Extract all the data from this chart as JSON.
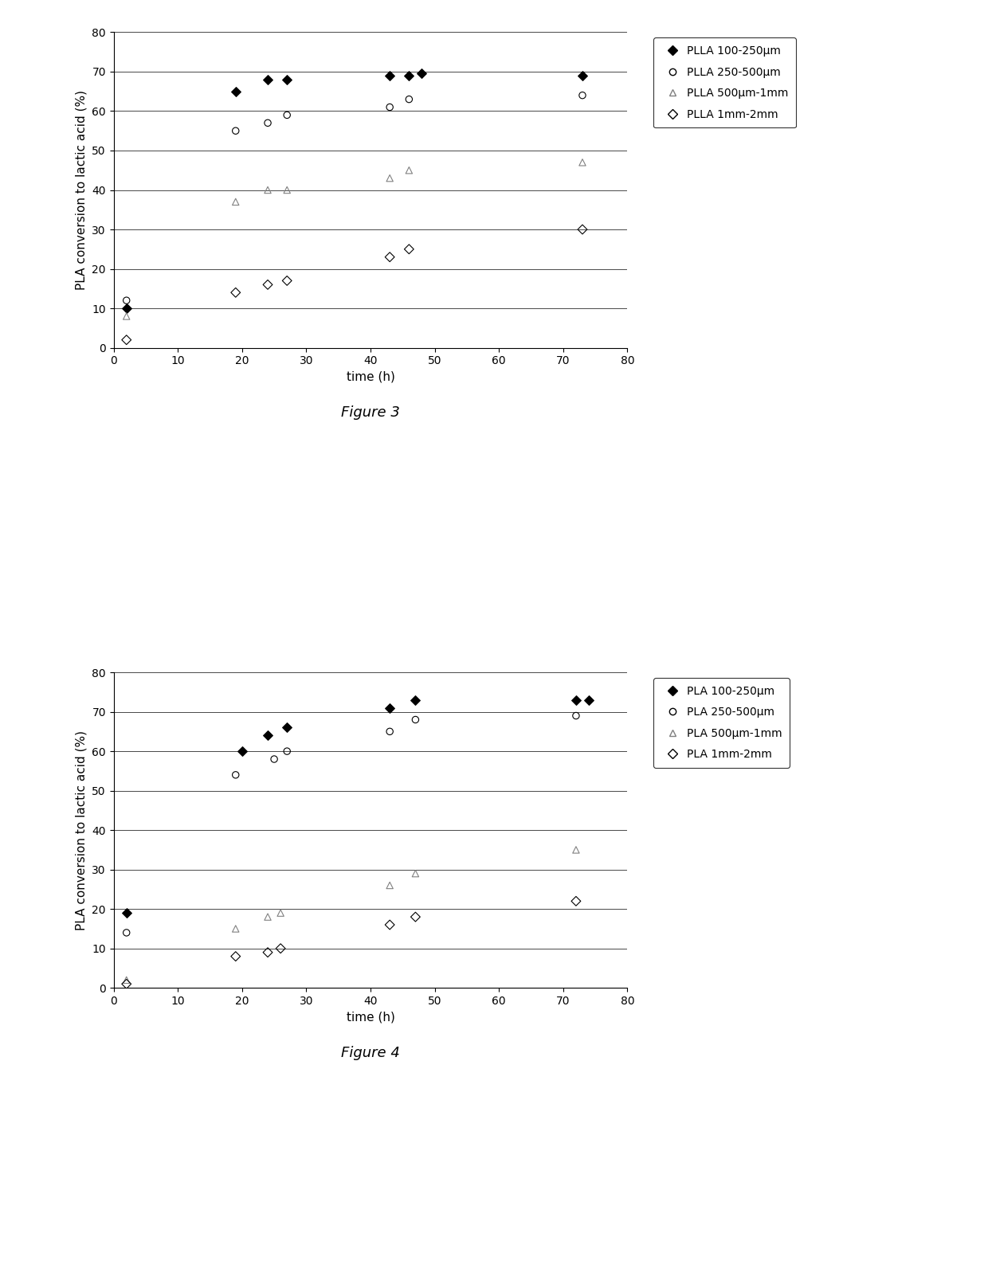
{
  "fig3": {
    "title": "Figure 3",
    "series": [
      {
        "label": "PLLA 100-250μm",
        "marker": "D",
        "color": "black",
        "fillstyle": "full",
        "x": [
          2,
          19,
          24,
          27,
          43,
          46,
          48,
          73
        ],
        "y": [
          10,
          65,
          68,
          68,
          69,
          69,
          69.5,
          69
        ]
      },
      {
        "label": "PLLA 250-500μm",
        "marker": "o",
        "color": "black",
        "fillstyle": "none",
        "x": [
          2,
          19,
          24,
          27,
          43,
          46,
          73
        ],
        "y": [
          12,
          55,
          57,
          59,
          61,
          63,
          64
        ]
      },
      {
        "label": "PLLA 500μm-1mm",
        "marker": "^",
        "color": "gray",
        "fillstyle": "none",
        "x": [
          2,
          19,
          24,
          27,
          43,
          46,
          73
        ],
        "y": [
          8,
          37,
          40,
          40,
          43,
          45,
          47
        ]
      },
      {
        "label": "PLLA 1mm-2mm",
        "marker": "D",
        "color": "black",
        "fillstyle": "none",
        "x": [
          2,
          19,
          24,
          27,
          43,
          46,
          73
        ],
        "y": [
          2,
          14,
          16,
          17,
          23,
          25,
          30
        ]
      }
    ],
    "xlabel": "time (h)",
    "ylabel": "PLA conversion to lactic acid (%)",
    "xlim": [
      0,
      80
    ],
    "ylim": [
      0,
      80
    ],
    "xticks": [
      0,
      10,
      20,
      30,
      40,
      50,
      60,
      70,
      80
    ],
    "yticks": [
      0,
      10,
      20,
      30,
      40,
      50,
      60,
      70,
      80
    ]
  },
  "fig4": {
    "title": "Figure 4",
    "series": [
      {
        "label": "PLA 100-250μm",
        "marker": "D",
        "color": "black",
        "fillstyle": "full",
        "x": [
          2,
          20,
          24,
          27,
          43,
          47,
          72,
          74
        ],
        "y": [
          19,
          60,
          64,
          66,
          71,
          73,
          73,
          73
        ]
      },
      {
        "label": "PLA 250-500μm",
        "marker": "o",
        "color": "black",
        "fillstyle": "none",
        "x": [
          2,
          19,
          25,
          27,
          43,
          47,
          72
        ],
        "y": [
          14,
          54,
          58,
          60,
          65,
          68,
          69
        ]
      },
      {
        "label": "PLA 500μm-1mm",
        "marker": "^",
        "color": "gray",
        "fillstyle": "none",
        "x": [
          2,
          19,
          24,
          26,
          43,
          47,
          72
        ],
        "y": [
          2,
          15,
          18,
          19,
          26,
          29,
          35
        ]
      },
      {
        "label": "PLA 1mm-2mm",
        "marker": "D",
        "color": "black",
        "fillstyle": "none",
        "x": [
          2,
          19,
          24,
          26,
          43,
          47,
          72
        ],
        "y": [
          1,
          8,
          9,
          10,
          16,
          18,
          22
        ]
      }
    ],
    "xlabel": "time (h)",
    "ylabel": "PLA conversion to lactic acid (%)",
    "xlim": [
      0,
      80
    ],
    "ylim": [
      0,
      80
    ],
    "xticks": [
      0,
      10,
      20,
      30,
      40,
      50,
      60,
      70,
      80
    ],
    "yticks": [
      0,
      10,
      20,
      30,
      40,
      50,
      60,
      70,
      80
    ]
  },
  "background_color": "#ffffff",
  "marker_size": 6,
  "font_size": 10,
  "label_font_size": 11,
  "title_font_size": 13,
  "legend_fontsize": 10
}
